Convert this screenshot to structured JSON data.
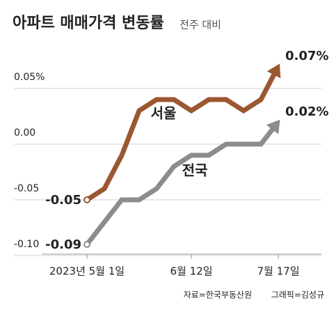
{
  "chart_data": {
    "type": "line",
    "title": "아파트 매매가격 변동률",
    "subtitle": "전주 대비",
    "source": "자료=한국부동산원",
    "credit": "그래픽=김성규",
    "categories": [
      "2023년 5월 1일",
      null,
      null,
      null,
      null,
      null,
      "6월 12일",
      null,
      null,
      null,
      null,
      "7월 17일"
    ],
    "series": [
      {
        "name": "서울",
        "color": "#9a5730",
        "values": [
          -0.05,
          -0.04,
          -0.01,
          0.03,
          0.04,
          0.04,
          0.03,
          0.04,
          0.04,
          0.03,
          0.04,
          0.07
        ],
        "value_labels": [
          "-0.05",
          null,
          null,
          null,
          null,
          null,
          null,
          null,
          null,
          null,
          null,
          "0.07%"
        ]
      },
      {
        "name": "전국",
        "color": "#8c8c8c",
        "values": [
          -0.09,
          -0.07,
          -0.05,
          -0.05,
          -0.04,
          -0.02,
          -0.01,
          -0.01,
          0.0,
          0.0,
          0.0,
          0.02
        ],
        "value_labels": [
          "-0.09",
          null,
          null,
          null,
          null,
          null,
          null,
          null,
          null,
          null,
          null,
          "0.02%"
        ]
      }
    ],
    "ylim": [
      -0.11,
      0.085
    ],
    "yticks": [
      {
        "value": 0.05,
        "label": "0.05%"
      },
      {
        "value": 0,
        "label": "0.00"
      },
      -0.05,
      {
        "value": -0.1,
        "label": "-0.10"
      }
    ],
    "grid": true
  }
}
